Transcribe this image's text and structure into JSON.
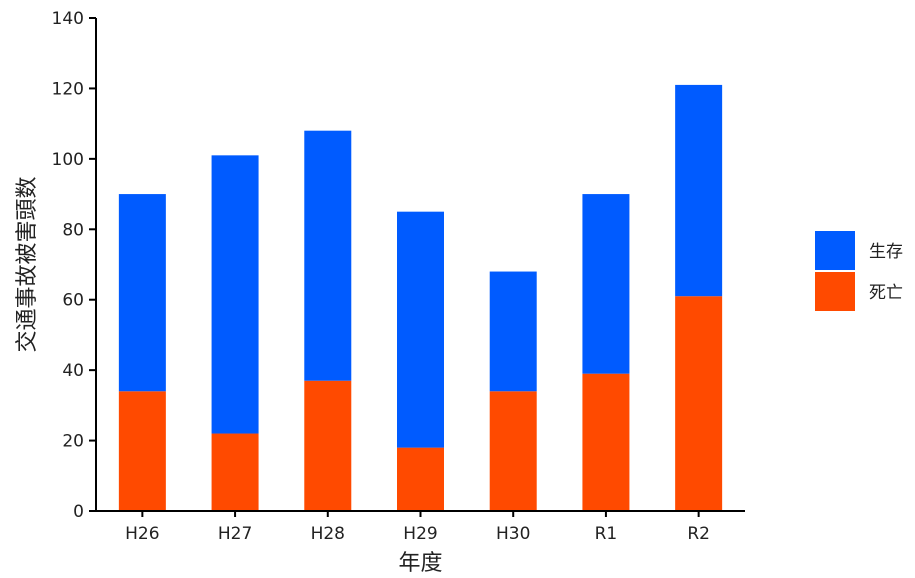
{
  "chart_data": {
    "type": "bar",
    "stacked": true,
    "categories": [
      "H26",
      "H27",
      "H28",
      "H29",
      "H30",
      "R1",
      "R2"
    ],
    "series": [
      {
        "name": "死亡",
        "color": "#FF4A00",
        "values": [
          34,
          22,
          37,
          18,
          34,
          39,
          61
        ]
      },
      {
        "name": "生存",
        "color": "#005BFF",
        "values": [
          56,
          79,
          71,
          67,
          34,
          51,
          60
        ]
      }
    ],
    "title": "",
    "xlabel": "年度",
    "ylabel": "交通事故被害頭数",
    "ylim": [
      0,
      140
    ],
    "yticks": [
      0,
      20,
      40,
      60,
      80,
      100,
      120,
      140
    ],
    "ytick_labels": [
      "0",
      "20",
      "40",
      "60",
      "80",
      "100",
      "120",
      "140"
    ],
    "legend": {
      "placement": "right",
      "order": [
        "生存",
        "死亡"
      ]
    },
    "grid": false
  }
}
